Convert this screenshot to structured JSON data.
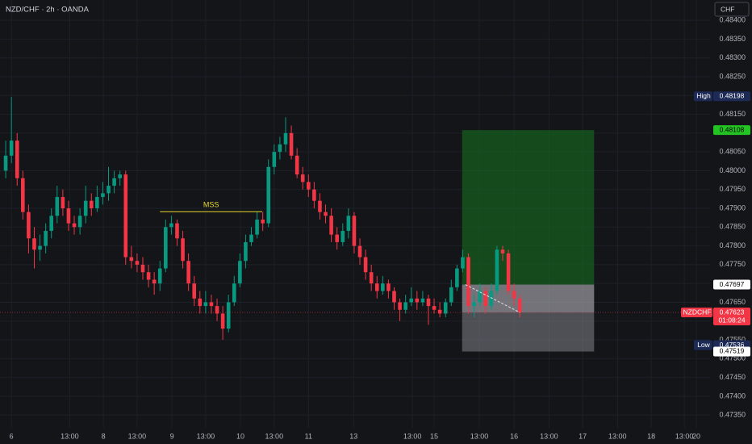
{
  "chart_data": {
    "type": "candlestick",
    "title": "NZD/CHF · 2h · OANDA",
    "currency": "CHF",
    "up_color": "#089981",
    "down_color": "#f23645",
    "grid": true,
    "ylim": [
      0.47316,
      0.48454
    ],
    "yticks": [
      {
        "value": 0.484,
        "label": "0.48400"
      },
      {
        "value": 0.4835,
        "label": "0.48350"
      },
      {
        "value": 0.483,
        "label": "0.48300"
      },
      {
        "value": 0.4825,
        "label": "0.48250"
      },
      {
        "value": 0.482,
        "label": "0.48200"
      },
      {
        "value": 0.4815,
        "label": "0.48150"
      },
      {
        "value": 0.481,
        "label": "0.48100"
      },
      {
        "value": 0.4805,
        "label": "0.48050"
      },
      {
        "value": 0.48,
        "label": "0.48000"
      },
      {
        "value": 0.4795,
        "label": "0.47950"
      },
      {
        "value": 0.479,
        "label": "0.47900"
      },
      {
        "value": 0.4785,
        "label": "0.47850"
      },
      {
        "value": 0.478,
        "label": "0.47800"
      },
      {
        "value": 0.4775,
        "label": "0.47750"
      },
      {
        "value": 0.477,
        "label": "0.47700"
      },
      {
        "value": 0.4765,
        "label": "0.47650"
      },
      {
        "value": 0.476,
        "label": "0.47600"
      },
      {
        "value": 0.4755,
        "label": "0.47550"
      },
      {
        "value": 0.475,
        "label": "0.47500"
      },
      {
        "value": 0.4745,
        "label": "0.47450"
      },
      {
        "value": 0.474,
        "label": "0.47400"
      },
      {
        "value": 0.4735,
        "label": "0.47350"
      }
    ],
    "xlim": [
      -1,
      123.3
    ],
    "xticks": [
      {
        "value": 1,
        "label": "6"
      },
      {
        "value": 11.2,
        "label": "13:00"
      },
      {
        "value": 17.1,
        "label": "8"
      },
      {
        "value": 23,
        "label": "13:00"
      },
      {
        "value": 29.1,
        "label": "9"
      },
      {
        "value": 35,
        "label": "13:00"
      },
      {
        "value": 41.1,
        "label": "10"
      },
      {
        "value": 47,
        "label": "13:00"
      },
      {
        "value": 53,
        "label": "11"
      },
      {
        "value": 60.9,
        "label": "13"
      },
      {
        "value": 71.2,
        "label": "13:00"
      },
      {
        "value": 75,
        "label": "15"
      },
      {
        "value": 82.9,
        "label": "13:00"
      },
      {
        "value": 89,
        "label": "16"
      },
      {
        "value": 95.1,
        "label": "13:00"
      },
      {
        "value": 101,
        "label": "17"
      },
      {
        "value": 107.1,
        "label": "13:00"
      },
      {
        "value": 113,
        "label": "18"
      },
      {
        "value": 118.8,
        "label": "13:00"
      },
      {
        "value": 120.9,
        "label": "20"
      }
    ],
    "candles": [
      [
        0.48,
        0.4808,
        0.4798,
        0.4804
      ],
      [
        0.4804,
        0.48196,
        0.4802,
        0.4808
      ],
      [
        0.4808,
        0.481,
        0.4796,
        0.4798
      ],
      [
        0.4798,
        0.48,
        0.4787,
        0.4789
      ],
      [
        0.4789,
        0.4791,
        0.4778,
        0.4782
      ],
      [
        0.4782,
        0.4785,
        0.4774,
        0.4779
      ],
      [
        0.4779,
        0.4783,
        0.4776,
        0.478
      ],
      [
        0.478,
        0.4786,
        0.4778,
        0.4784
      ],
      [
        0.4784,
        0.479,
        0.4782,
        0.4788
      ],
      [
        0.4788,
        0.4796,
        0.4786,
        0.4793
      ],
      [
        0.4793,
        0.4795,
        0.4788,
        0.479
      ],
      [
        0.479,
        0.4792,
        0.4784,
        0.4786
      ],
      [
        0.4786,
        0.4788,
        0.4783,
        0.4785
      ],
      [
        0.4785,
        0.479,
        0.4783,
        0.4788
      ],
      [
        0.4788,
        0.4796,
        0.4786,
        0.4792
      ],
      [
        0.4792,
        0.4794,
        0.4788,
        0.479
      ],
      [
        0.479,
        0.4796,
        0.4789,
        0.4793
      ],
      [
        0.4793,
        0.4797,
        0.4791,
        0.4794
      ],
      [
        0.4794,
        0.4801,
        0.4792,
        0.4796
      ],
      [
        0.4796,
        0.48,
        0.4794,
        0.4798
      ],
      [
        0.4798,
        0.48,
        0.4796,
        0.4799
      ],
      [
        0.4799,
        0.48,
        0.4775,
        0.4777
      ],
      [
        0.4777,
        0.478,
        0.4774,
        0.4776
      ],
      [
        0.4776,
        0.4778,
        0.4773,
        0.4775
      ],
      [
        0.4775,
        0.4777,
        0.4771,
        0.4773
      ],
      [
        0.4773,
        0.4775,
        0.4769,
        0.4771
      ],
      [
        0.4771,
        0.4773,
        0.4767,
        0.477
      ],
      [
        0.477,
        0.4776,
        0.4768,
        0.4774
      ],
      [
        0.4774,
        0.4787,
        0.4773,
        0.4785
      ],
      [
        0.4785,
        0.4788,
        0.4783,
        0.4786
      ],
      [
        0.4786,
        0.4787,
        0.478,
        0.4782
      ],
      [
        0.4782,
        0.4784,
        0.4774,
        0.4776
      ],
      [
        0.4776,
        0.4778,
        0.4768,
        0.477
      ],
      [
        0.477,
        0.4772,
        0.4764,
        0.4766
      ],
      [
        0.4766,
        0.4768,
        0.4762,
        0.4764
      ],
      [
        0.4764,
        0.4768,
        0.4762,
        0.4765
      ],
      [
        0.4765,
        0.4767,
        0.4762,
        0.4764
      ],
      [
        0.4764,
        0.4766,
        0.476,
        0.4762
      ],
      [
        0.4762,
        0.4764,
        0.4755,
        0.4758
      ],
      [
        0.4758,
        0.4767,
        0.4757,
        0.4765
      ],
      [
        0.4765,
        0.4772,
        0.4764,
        0.477
      ],
      [
        0.477,
        0.4778,
        0.4769,
        0.4776
      ],
      [
        0.4776,
        0.4783,
        0.4774,
        0.4781
      ],
      [
        0.4781,
        0.4785,
        0.478,
        0.4783
      ],
      [
        0.4783,
        0.4789,
        0.4782,
        0.4787
      ],
      [
        0.4787,
        0.4789,
        0.4784,
        0.4786
      ],
      [
        0.4786,
        0.4803,
        0.4785,
        0.4801
      ],
      [
        0.4801,
        0.4807,
        0.4799,
        0.4805
      ],
      [
        0.4805,
        0.4809,
        0.4803,
        0.4807
      ],
      [
        0.4807,
        0.48142,
        0.4805,
        0.481
      ],
      [
        0.481,
        0.4812,
        0.4803,
        0.4804
      ],
      [
        0.4804,
        0.4806,
        0.4798,
        0.4799
      ],
      [
        0.4799,
        0.4801,
        0.4795,
        0.4797
      ],
      [
        0.4797,
        0.4799,
        0.4793,
        0.4795
      ],
      [
        0.4795,
        0.4797,
        0.479,
        0.4792
      ],
      [
        0.4792,
        0.4794,
        0.4787,
        0.4789
      ],
      [
        0.4789,
        0.4791,
        0.4786,
        0.4788
      ],
      [
        0.4788,
        0.479,
        0.4781,
        0.4783
      ],
      [
        0.4783,
        0.4785,
        0.4779,
        0.4781
      ],
      [
        0.4781,
        0.4786,
        0.478,
        0.4784
      ],
      [
        0.4784,
        0.479,
        0.4782,
        0.4788
      ],
      [
        0.4788,
        0.4789,
        0.4778,
        0.478
      ],
      [
        0.478,
        0.4782,
        0.4775,
        0.4777
      ],
      [
        0.4777,
        0.4779,
        0.4771,
        0.4773
      ],
      [
        0.4773,
        0.4775,
        0.4768,
        0.477
      ],
      [
        0.477,
        0.4772,
        0.4766,
        0.4768
      ],
      [
        0.4768,
        0.4772,
        0.4767,
        0.477
      ],
      [
        0.477,
        0.4771,
        0.4766,
        0.4768
      ],
      [
        0.4768,
        0.4769,
        0.4763,
        0.4765
      ],
      [
        0.4765,
        0.4766,
        0.476,
        0.4763
      ],
      [
        0.4763,
        0.4767,
        0.4762,
        0.4765
      ],
      [
        0.4765,
        0.4769,
        0.4764,
        0.4766
      ],
      [
        0.4766,
        0.4768,
        0.4763,
        0.4765
      ],
      [
        0.4765,
        0.4768,
        0.4764,
        0.4766
      ],
      [
        0.4766,
        0.4767,
        0.4759,
        0.4764
      ],
      [
        0.4764,
        0.4766,
        0.4762,
        0.4763
      ],
      [
        0.4763,
        0.4765,
        0.4761,
        0.4762
      ],
      [
        0.4762,
        0.4766,
        0.4761,
        0.4765
      ],
      [
        0.4765,
        0.4771,
        0.4764,
        0.4769
      ],
      [
        0.4769,
        0.4775,
        0.4768,
        0.4774
      ],
      [
        0.4774,
        0.4779,
        0.4773,
        0.4777
      ],
      [
        0.4777,
        0.4778,
        0.4762,
        0.4764
      ],
      [
        0.4764,
        0.4767,
        0.4761,
        0.4765
      ],
      [
        0.4765,
        0.477,
        0.4764,
        0.4768
      ],
      [
        0.4768,
        0.4769,
        0.4762,
        0.4764
      ],
      [
        0.4764,
        0.477,
        0.4763,
        0.4768
      ],
      [
        0.4768,
        0.478,
        0.4767,
        0.4779
      ],
      [
        0.4779,
        0.478,
        0.4776,
        0.4778
      ],
      [
        0.4778,
        0.4779,
        0.4767,
        0.4768
      ],
      [
        0.4768,
        0.477,
        0.4764,
        0.4766
      ],
      [
        0.4766,
        0.4767,
        0.4761,
        0.47623
      ]
    ],
    "mss": {
      "label": "MSS",
      "value": 0.47891,
      "x": [
        27,
        44.9
      ]
    },
    "position": {
      "x": [
        79.9,
        103
      ],
      "entry": 0.47697,
      "target": 0.48108,
      "stop": 0.47519
    },
    "high": {
      "label": "High",
      "value": 0.48198
    },
    "low": {
      "label": "Low",
      "value": 0.47536
    },
    "last": {
      "symbol": "NZDCHF",
      "value": 0.47623,
      "countdown": "01:08:24"
    }
  }
}
